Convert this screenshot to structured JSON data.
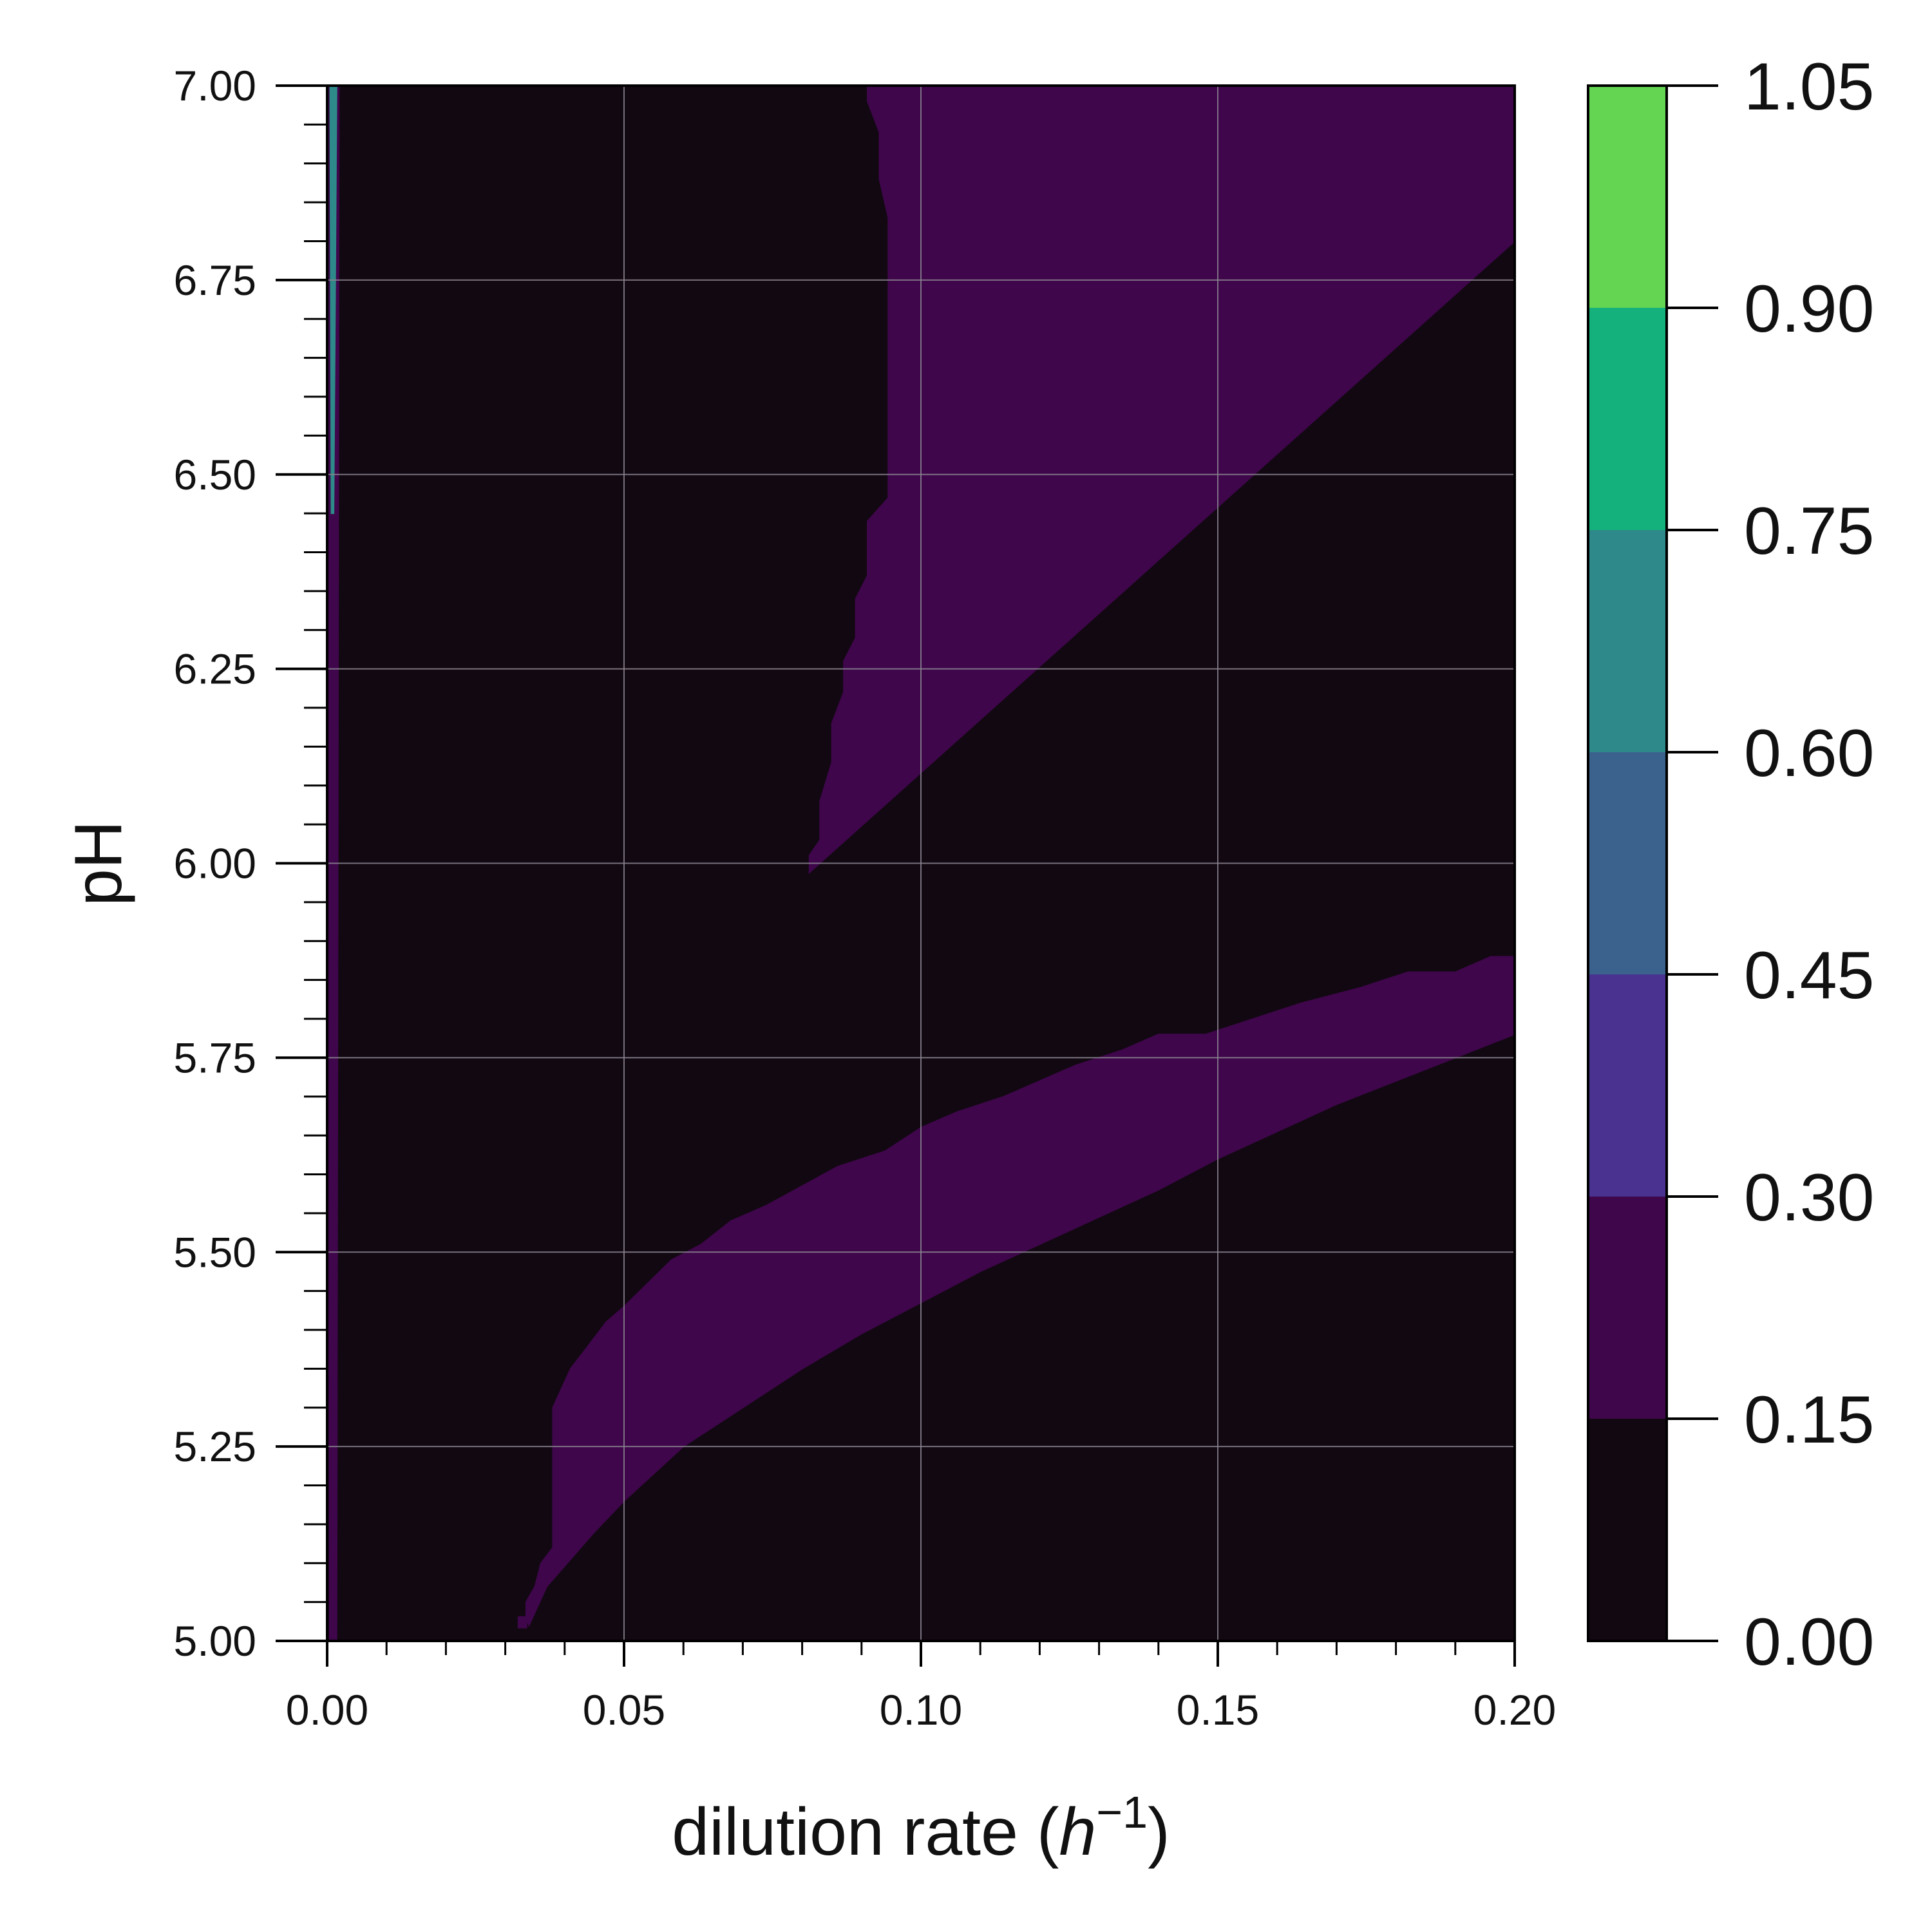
{
  "chart_data": {
    "type": "heatmap",
    "title": "",
    "xlabel": "dilution rate",
    "xlabel_unit_base": "h",
    "xlabel_unit_exp": "−1",
    "ylabel": "pH",
    "xlim": [
      0.0,
      0.2
    ],
    "ylim": [
      5.0,
      7.0
    ],
    "x_ticks": [
      "0.00",
      "0.05",
      "0.10",
      "0.15",
      "0.20"
    ],
    "y_ticks": [
      "5.00",
      "5.25",
      "5.50",
      "5.75",
      "6.00",
      "6.25",
      "6.50",
      "6.75",
      "7.00"
    ],
    "grid": true,
    "background_level_color": "#110811",
    "colorbar": {
      "ticks": [
        "0.00",
        "0.15",
        "0.30",
        "0.45",
        "0.60",
        "0.75",
        "0.90",
        "1.05"
      ],
      "levels": [
        0.0,
        0.15,
        0.3,
        0.45,
        0.6,
        0.75,
        0.9,
        1.05
      ],
      "colors": [
        "#110811",
        "#3f064b",
        "#4a3390",
        "#3b628d",
        "#2e8a8a",
        "#14b17d",
        "#63d552"
      ]
    },
    "regions": [
      {
        "name": "upper-band",
        "level": "0.15–0.30",
        "color": "#3f064b",
        "polygon": [
          [
            0.091,
            7.0
          ],
          [
            0.2,
            7.0
          ],
          [
            0.2,
            6.8
          ],
          [
            0.0812,
            5.988
          ],
          [
            0.0812,
            6.01
          ],
          [
            0.083,
            6.03
          ],
          [
            0.083,
            6.08
          ],
          [
            0.085,
            6.13
          ],
          [
            0.085,
            6.18
          ],
          [
            0.087,
            6.22
          ],
          [
            0.087,
            6.26
          ],
          [
            0.089,
            6.29
          ],
          [
            0.089,
            6.34
          ],
          [
            0.091,
            6.37
          ],
          [
            0.091,
            6.44
          ],
          [
            0.0945,
            6.47
          ],
          [
            0.0945,
            6.83
          ],
          [
            0.093,
            6.88
          ],
          [
            0.093,
            6.94
          ],
          [
            0.091,
            6.98
          ]
        ]
      },
      {
        "name": "lower-band",
        "level": "0.15–0.30",
        "color": "#3f064b",
        "polygon": [
          [
            0.034,
            5.02
          ],
          [
            0.037,
            5.07
          ],
          [
            0.045,
            5.14
          ],
          [
            0.05,
            5.18
          ],
          [
            0.06,
            5.25
          ],
          [
            0.07,
            5.3
          ],
          [
            0.08,
            5.35
          ],
          [
            0.09,
            5.395
          ],
          [
            0.1,
            5.435
          ],
          [
            0.11,
            5.475
          ],
          [
            0.12,
            5.51
          ],
          [
            0.13,
            5.545
          ],
          [
            0.14,
            5.58
          ],
          [
            0.15,
            5.62
          ],
          [
            0.16,
            5.655
          ],
          [
            0.17,
            5.69
          ],
          [
            0.18,
            5.72
          ],
          [
            0.19,
            5.75
          ],
          [
            0.2,
            5.78
          ],
          [
            0.2,
            5.88
          ],
          [
            0.196,
            5.88
          ],
          [
            0.19,
            5.86
          ],
          [
            0.182,
            5.86
          ],
          [
            0.174,
            5.84
          ],
          [
            0.164,
            5.82
          ],
          [
            0.156,
            5.8
          ],
          [
            0.148,
            5.78
          ],
          [
            0.14,
            5.78
          ],
          [
            0.134,
            5.76
          ],
          [
            0.126,
            5.74
          ],
          [
            0.12,
            5.72
          ],
          [
            0.114,
            5.7
          ],
          [
            0.106,
            5.68
          ],
          [
            0.1,
            5.66
          ],
          [
            0.094,
            5.63
          ],
          [
            0.086,
            5.61
          ],
          [
            0.08,
            5.585
          ],
          [
            0.074,
            5.56
          ],
          [
            0.068,
            5.54
          ],
          [
            0.063,
            5.51
          ],
          [
            0.058,
            5.49
          ],
          [
            0.054,
            5.46
          ],
          [
            0.05,
            5.43
          ],
          [
            0.047,
            5.41
          ],
          [
            0.044,
            5.38
          ],
          [
            0.041,
            5.35
          ],
          [
            0.038,
            5.3
          ],
          [
            0.038,
            5.12
          ],
          [
            0.036,
            5.1
          ],
          [
            0.035,
            5.07
          ],
          [
            0.0335,
            5.05
          ],
          [
            0.0335,
            5.03
          ]
        ]
      },
      {
        "name": "lower-band-speck",
        "level": "0.15–0.30",
        "color": "#3f064b",
        "polygon": [
          [
            0.0322,
            5.017
          ],
          [
            0.0336,
            5.017
          ],
          [
            0.0336,
            5.031
          ],
          [
            0.0322,
            5.031
          ]
        ]
      },
      {
        "name": "left-edge-strip",
        "level": "0.15–0.30",
        "color": "#3f064b",
        "polygon": [
          [
            0.0,
            7.0
          ],
          [
            0.002,
            7.0
          ],
          [
            0.0016,
            5.0
          ],
          [
            0.0004,
            5.0
          ]
        ]
      },
      {
        "name": "left-edge-strip-high",
        "level": "0.45–0.90",
        "color": "#2e8a8a",
        "polygon": [
          [
            0.0005,
            7.0
          ],
          [
            0.0016,
            7.0
          ],
          [
            0.0011,
            6.45
          ],
          [
            0.0007,
            6.45
          ]
        ]
      }
    ]
  }
}
